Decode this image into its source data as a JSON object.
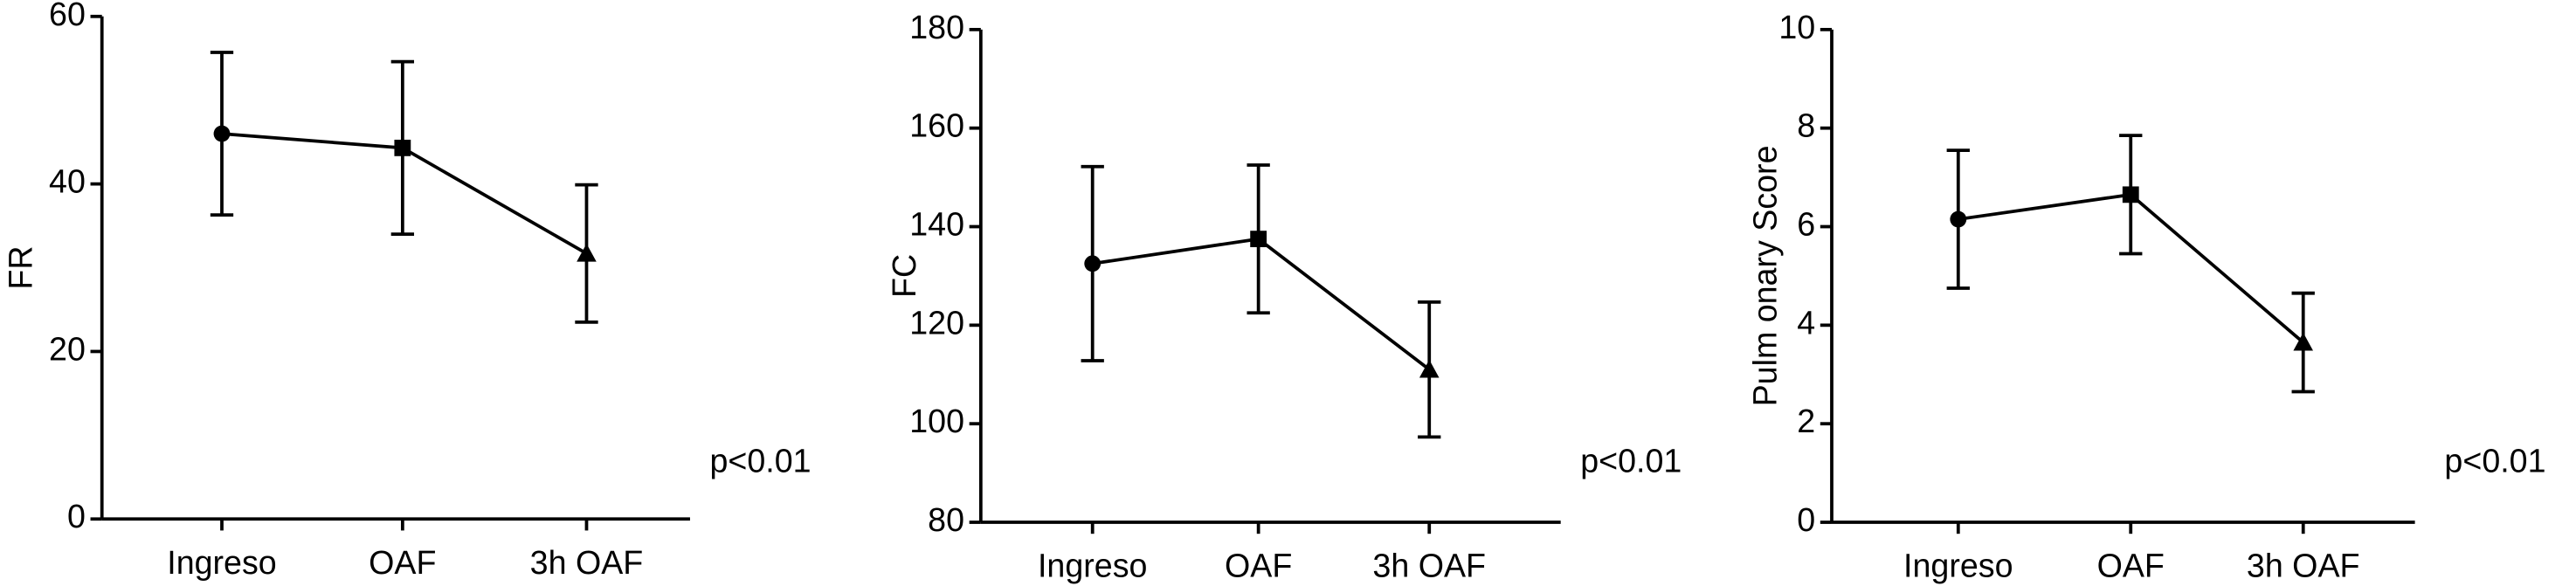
{
  "chart_data": [
    {
      "type": "line",
      "ylabel": "FR",
      "annotation": "p<0.01",
      "categories": [
        "Ingreso",
        "OAF",
        "3h OAF"
      ],
      "series": [
        {
          "color": "#000000",
          "values": [
            46,
            44.3,
            31.7
          ],
          "errors": [
            9.7,
            10.3,
            8.2
          ],
          "markers": [
            "circle",
            "square",
            "triangle"
          ]
        }
      ],
      "ylim": [
        0,
        60
      ],
      "yticks": [
        0,
        20,
        40,
        60
      ]
    },
    {
      "type": "line",
      "ylabel": "FC",
      "annotation": "p<0.01",
      "categories": [
        "Ingreso",
        "OAF",
        "3h OAF"
      ],
      "series": [
        {
          "color": "#000000",
          "values": [
            132.5,
            137.5,
            111
          ],
          "errors": [
            19.7,
            15,
            13.7
          ],
          "markers": [
            "circle",
            "square",
            "triangle"
          ]
        }
      ],
      "ylim": [
        80,
        180
      ],
      "yticks": [
        80,
        100,
        120,
        140,
        160,
        180
      ]
    },
    {
      "type": "line",
      "ylabel": "Pulm onary Score",
      "annotation": "p<0.01",
      "categories": [
        "Ingreso",
        "OAF",
        "3h OAF"
      ],
      "series": [
        {
          "color": "#000000",
          "values": [
            6.15,
            6.65,
            3.65
          ],
          "errors": [
            1.4,
            1.2,
            1.0
          ],
          "markers": [
            "circle",
            "square",
            "triangle"
          ]
        }
      ],
      "ylim": [
        0,
        10
      ],
      "yticks": [
        0,
        2,
        4,
        6,
        8,
        10
      ]
    }
  ]
}
